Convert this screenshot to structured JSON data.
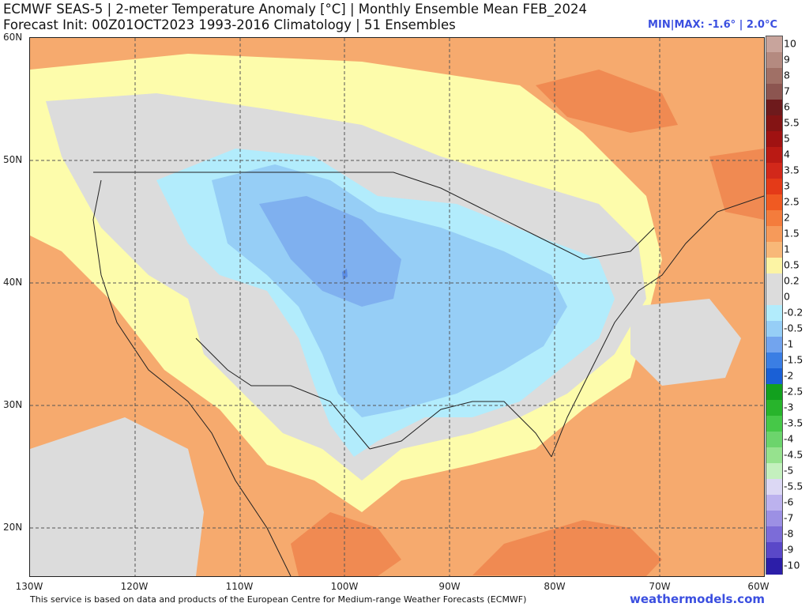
{
  "header": {
    "title_line1": "ECMWF SEAS-5 | 2-meter Temperature Anomaly [°C] | Monthly Ensemble Mean FEB_2024",
    "title_line2": "Forecast Init: 00Z01OCT2023    1993-2016 Climatology | 51 Ensembles",
    "minmax": "MIN|MAX: -1.6° | 2.0°C"
  },
  "map": {
    "lat_labels": [
      "60N",
      "50N",
      "40N",
      "30N",
      "20N"
    ],
    "lon_labels": [
      "130W",
      "120W",
      "110W",
      "100W",
      "90W",
      "80W",
      "70W",
      "60W"
    ],
    "colors": {
      "ocean_base": "#f6aa6e",
      "warm_strong": "#f08a52",
      "slight_warm": "#fdfcab",
      "neutral": "#dcdcdc",
      "cool_light": "#b2ecfc",
      "cool": "#96cef6",
      "cool_strong": "#7fb0ef",
      "cool_core": "#5b8de6"
    }
  },
  "colorbar": {
    "levels": [
      {
        "label": "10",
        "color": "#c8a49c"
      },
      {
        "label": "9",
        "color": "#b48a80"
      },
      {
        "label": "8",
        "color": "#a07066"
      },
      {
        "label": "7",
        "color": "#8c5550"
      },
      {
        "label": "6",
        "color": "#6e1a1c"
      },
      {
        "label": "5.5",
        "color": "#841414"
      },
      {
        "label": "5",
        "color": "#a01212"
      },
      {
        "label": "4",
        "color": "#ba1a14"
      },
      {
        "label": "3.5",
        "color": "#d2281a"
      },
      {
        "label": "3",
        "color": "#e43a18"
      },
      {
        "label": "2.5",
        "color": "#f05a22"
      },
      {
        "label": "2",
        "color": "#f47c3c"
      },
      {
        "label": "1.5",
        "color": "#f69a5a"
      },
      {
        "label": "1",
        "color": "#f8b878"
      },
      {
        "label": "0.5",
        "color": "#fcf4a4"
      },
      {
        "label": "0.2",
        "color": "#dcdcdc"
      },
      {
        "label": "0",
        "color": "#dcdcdc"
      },
      {
        "label": "-0.2",
        "color": "#b2ecfc"
      },
      {
        "label": "-0.5",
        "color": "#96cef6"
      },
      {
        "label": "-1",
        "color": "#72a4ee"
      },
      {
        "label": "-1.5",
        "color": "#3a7ee4"
      },
      {
        "label": "-2",
        "color": "#1a60d6"
      },
      {
        "label": "-2.5",
        "color": "#12a01e"
      },
      {
        "label": "-3",
        "color": "#28b42c"
      },
      {
        "label": "-3.5",
        "color": "#46c848"
      },
      {
        "label": "-4",
        "color": "#6cd46c"
      },
      {
        "label": "-4.5",
        "color": "#96e28e"
      },
      {
        "label": "-5",
        "color": "#c4f0be"
      },
      {
        "label": "-5.5",
        "color": "#dcd8f4"
      },
      {
        "label": "-6",
        "color": "#bcb2ee"
      },
      {
        "label": "-7",
        "color": "#9c90e4"
      },
      {
        "label": "-8",
        "color": "#7c6cd8"
      },
      {
        "label": "-9",
        "color": "#5a48c8"
      },
      {
        "label": "-10",
        "color": "#2c1ea8"
      }
    ]
  },
  "footer": {
    "disclaimer": "This service is based on data and products of the European Centre for Medium-range Weather Forecasts (ECMWF)",
    "brand": "weathermodels.com"
  }
}
